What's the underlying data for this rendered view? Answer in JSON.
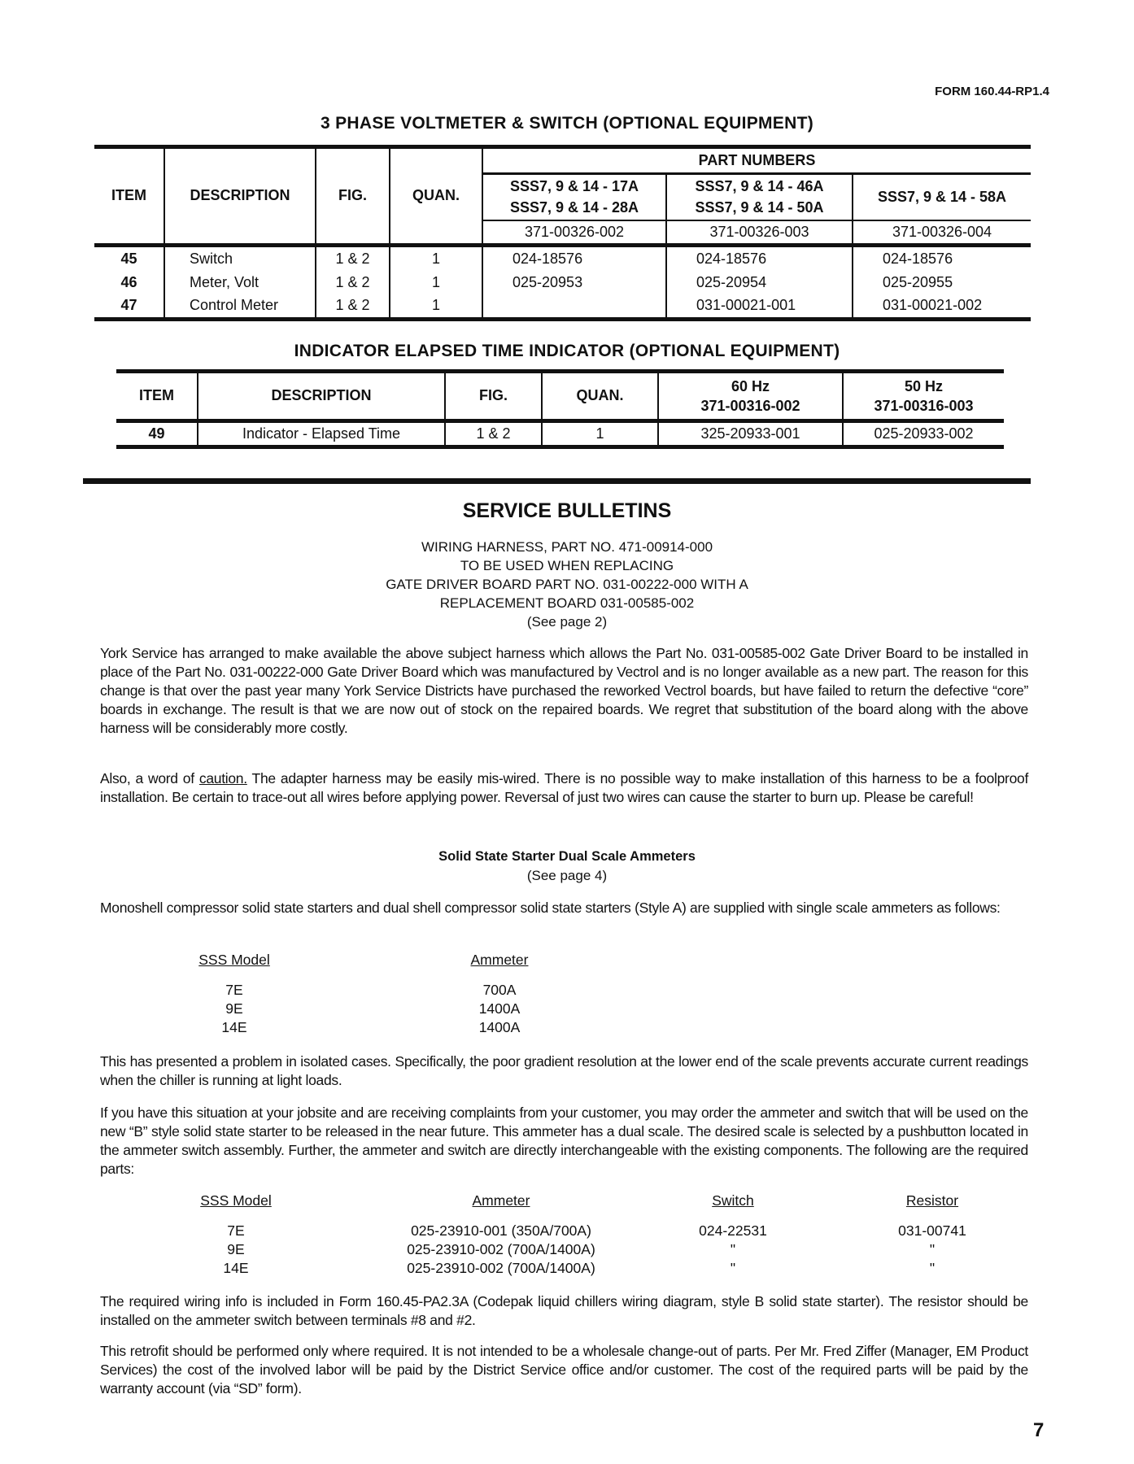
{
  "form_number": "FORM 160.44-RP1.4",
  "voltmeter_table": {
    "title": "3 PHASE VOLTMETER & SWITCH (OPTIONAL EQUIPMENT)",
    "headers": {
      "item": "ITEM",
      "description": "DESCRIPTION",
      "fig": "FIG.",
      "quan": "QUAN.",
      "part_numbers": "PART NUMBERS"
    },
    "models": [
      {
        "line1": "SSS7, 9 & 14 - 17A",
        "line2": "SSS7, 9 & 14 - 28A",
        "kit": "371-00326-002"
      },
      {
        "line1": "SSS7, 9 & 14 - 46A",
        "line2": "SSS7, 9 & 14 - 50A",
        "kit": "371-00326-003"
      },
      {
        "line1": "SSS7, 9 & 14 - 58A",
        "line2": "",
        "kit": "371-00326-004"
      }
    ],
    "rows": [
      {
        "item": "45",
        "description": "Switch",
        "fig": "1 & 2",
        "quan": "1",
        "parts": [
          "024-18576",
          "024-18576",
          "024-18576"
        ]
      },
      {
        "item": "46",
        "description": "Meter, Volt",
        "fig": "1 & 2",
        "quan": "1",
        "parts": [
          "025-20953",
          "025-20954",
          "025-20955"
        ]
      },
      {
        "item": "47",
        "description": "Control Meter",
        "fig": "1 & 2",
        "quan": "1",
        "parts": [
          "",
          "031-00021-001",
          "031-00021-002"
        ]
      }
    ]
  },
  "elapsed_table": {
    "title": "INDICATOR ELAPSED TIME INDICATOR (OPTIONAL EQUIPMENT)",
    "headers": {
      "item": "ITEM",
      "description": "DESCRIPTION",
      "fig": "FIG.",
      "quan": "QUAN.",
      "hz60": "60 Hz",
      "kit60": "371-00316-002",
      "hz50": "50 Hz",
      "kit50": "371-00316-003"
    },
    "rows": [
      {
        "item": "49",
        "description": "Indicator - Elapsed Time",
        "fig": "1 & 2",
        "quan": "1",
        "part60": "325-20933-001",
        "part50": "025-20933-002"
      }
    ]
  },
  "bulletins": {
    "title": "SERVICE BULLETINS",
    "subject": [
      "WIRING HARNESS, PART NO. 471-00914-000",
      "TO BE USED WHEN REPLACING",
      "GATE DRIVER BOARD PART NO. 031-00222-000 WITH A",
      "REPLACEMENT BOARD 031-00585-002",
      "(See page 2)"
    ],
    "p1": "York Service has arranged to make available the above subject harness which allows the Part No. 031-00585-002 Gate Driver Board to be installed in place of the Part No. 031-00222-000 Gate Driver Board which was manufactured by Vectrol and is no longer available as a new part. The reason for this change is that over the past year many York Service Districts have purchased the reworked Vectrol boards, but have failed to return the defective “core” boards in exchange. The result is that we are now out of stock on the repaired boards. We regret that substitution of the board along with the above harness will be considerably more costly.",
    "p2_a": "Also, a word of ",
    "p2_caution": "caution.",
    "p2_b": " The adapter harness may be easily mis-wired. There is no possible way to make installation of this harness to be a foolproof installation. Be certain to trace-out all wires before applying power. Reversal of just two wires can cause the starter to burn up. Please be careful!",
    "sub_title": "Solid State Starter Dual Scale Ammeters",
    "sub_ref": "(See page 4)",
    "p3": "Monoshell compressor solid state starters and dual shell compressor solid state starters (Style A) are supplied with single scale ammeters as follows:",
    "single_table": {
      "headers": [
        "SSS Model",
        "Ammeter"
      ],
      "rows": [
        [
          "7E",
          "700A"
        ],
        [
          "9E",
          "1400A"
        ],
        [
          "14E",
          "1400A"
        ]
      ]
    },
    "p4": "This has presented a problem in isolated cases. Specifically, the poor gradient resolution at the lower end of the scale prevents accurate current readings when the chiller is running at light loads.",
    "p5": "If you have this situation at your jobsite and are receiving complaints from your customer, you may order the ammeter and switch that will be used on the new “B” style solid state starter to be released in the near future. This ammeter has a dual scale. The desired scale is selected by a pushbutton located in the ammeter switch assembly. Further, the ammeter and switch are directly interchangeable with the existing components. The following are the required parts:",
    "dual_table": {
      "headers": [
        "SSS Model",
        "Ammeter",
        "Switch",
        "Resistor"
      ],
      "rows": [
        [
          "7E",
          "025-23910-001 (350A/700A)",
          "024-22531",
          "031-00741"
        ],
        [
          "9E",
          "025-23910-002 (700A/1400A)",
          "\"",
          "\""
        ],
        [
          "14E",
          "025-23910-002 (700A/1400A)",
          "\"",
          "\""
        ]
      ]
    },
    "p6": "The required wiring info is included in Form 160.45-PA2.3A (Codepak liquid chillers wiring diagram, style B solid state starter). The resistor should be installed on the ammeter switch between terminals #8 and #2.",
    "p7": "This retrofit should be performed only where required. It is not intended to be a wholesale change-out of parts. Per Mr. Fred Ziffer (Manager, EM Product Services) the cost of the involved labor will be paid by the District Service office and/or customer. The cost of the required parts will be paid by the warranty account (via “SD” form)."
  },
  "page_number": "7"
}
